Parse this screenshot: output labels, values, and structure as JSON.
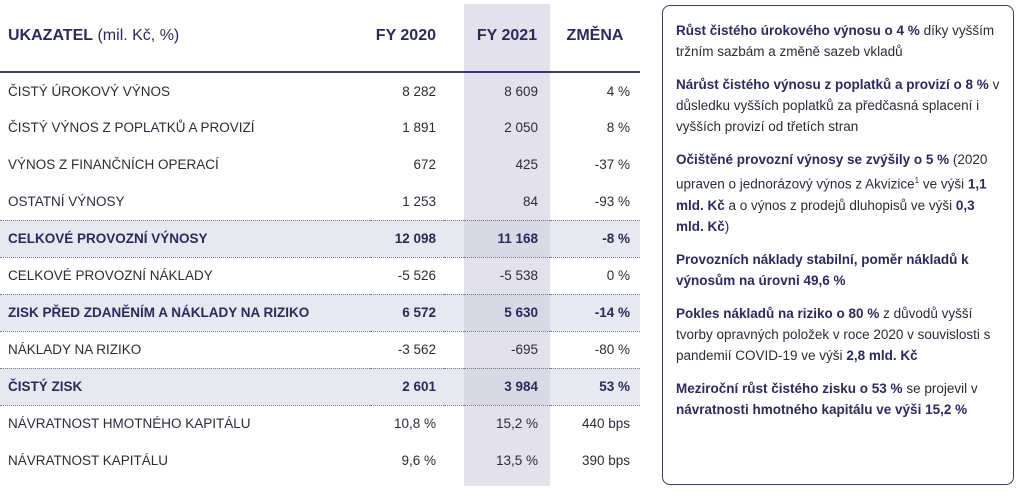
{
  "table": {
    "header": {
      "label_bold": "UKAZATEL",
      "label_unit": " (mil. Kč, %)",
      "fy2020": "FY 2020",
      "fy2021": "FY 2021",
      "change": "ZMĚNA"
    },
    "rows": [
      {
        "label": "ČISTÝ ÚROKOVÝ VÝNOS",
        "fy2020": "8 282",
        "fy2021": "8 609",
        "change": "4 %"
      },
      {
        "label": "ČISTÝ VÝNOS Z POPLATKŮ A PROVIZÍ",
        "fy2020": "1 891",
        "fy2021": "2 050",
        "change": "8 %"
      },
      {
        "label": "VÝNOS Z FINANČNÍCH OPERACÍ",
        "fy2020": "672",
        "fy2021": "425",
        "change": "-37 %"
      },
      {
        "label": "OSTATNÍ VÝNOSY",
        "fy2020": "1 253",
        "fy2021": "84",
        "change": "-93 %"
      },
      {
        "label": "CELKOVÉ PROVOZNÍ VÝNOSY",
        "fy2020": "12 098",
        "fy2021": "11 168",
        "change": "-8 %"
      },
      {
        "label": "CELKOVÉ PROVOZNÍ NÁKLADY",
        "fy2020": "-5 526",
        "fy2021": "-5 538",
        "change": "0 %"
      },
      {
        "label": "ZISK PŘED ZDANĚNÍM A NÁKLADY NA RIZIKO",
        "fy2020": "6 572",
        "fy2021": "5 630",
        "change": "-14 %"
      },
      {
        "label": "NÁKLADY NA RIZIKO",
        "fy2020": "-3 562",
        "fy2021": "-695",
        "change": "-80 %"
      },
      {
        "label": "ČISTÝ ZISK",
        "fy2020": "2 601",
        "fy2021": "3 984",
        "change": "53 %"
      },
      {
        "label": "NÁVRATNOST HMOTNÉHO KAPITÁLU",
        "fy2020": "10,8 %",
        "fy2021": "15,2 %",
        "change": "440 bps"
      },
      {
        "label": "NÁVRATNOST KAPITÁLU",
        "fy2020": "9,6 %",
        "fy2021": "13,5 %",
        "change": "390 bps"
      }
    ]
  },
  "notes": {
    "n1": {
      "b1": "Růst čistého úrokového výnosu o 4 %",
      "t1": " díky vyšším tržním sazbám a změně sazeb vkladů"
    },
    "n2": {
      "b1": "Nárůst čistého výnosu z poplatků a provizí o 8 %",
      "t1": " v důsledku vyšších poplatků za předčasná splacení i vyšších provizí od třetích stran"
    },
    "n3": {
      "b1": "Očištěné provozní výnosy se zvýšily o 5 %",
      "t1": "  (2020 upraven o jednorázový výnos z Akvizice",
      "sup": "1",
      "t2": " ve výši ",
      "b2": "1,1 mld. Kč",
      "t3": " a o výnos z prodejů dluhopisů ve výši ",
      "b3": "0,3 mld. Kč",
      "t4": ")"
    },
    "n4": {
      "b1": "Provozních náklady stabilní, poměr nákladů k výnosům na úrovni 49,6 %"
    },
    "n5": {
      "b1": "Pokles nákladů na riziko o 80 %",
      "t1": " z důvodů vyšší tvorby opravných položek v roce 2020 v souvislosti s pandemií COVID-19 ve výši ",
      "b2": "2,8 mld. Kč"
    },
    "n6": {
      "b1": "Meziroční růst čistého zisku o 53 %",
      "t1": " se projevil v ",
      "b2": "návratnosti hmotného kapitálu ve výši 15,2 %"
    }
  }
}
